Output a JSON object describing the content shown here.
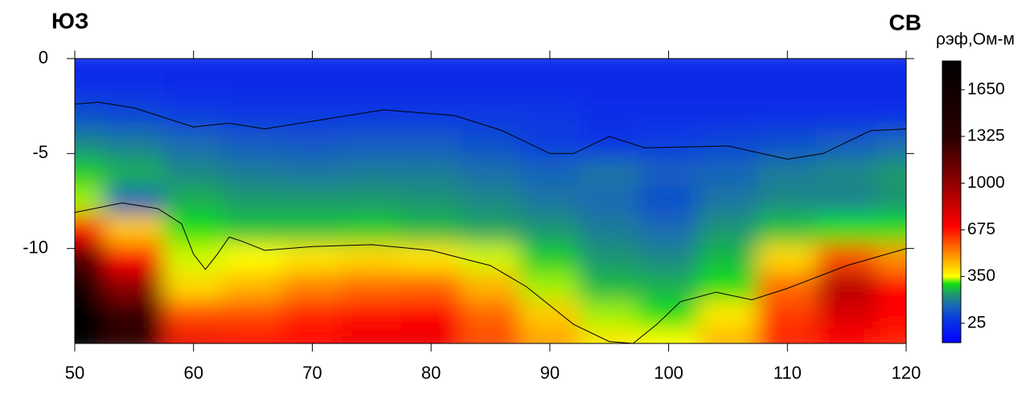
{
  "chart_data": {
    "type": "contour",
    "left_label": "ЮЗ",
    "right_label": "СВ",
    "colorbar_title": "ρэф,Ом-м",
    "xlim": [
      50,
      120
    ],
    "ylim": [
      -15,
      0
    ],
    "xticks": [
      50,
      60,
      70,
      80,
      90,
      100,
      110,
      120
    ],
    "yticks": [
      0,
      -5,
      -10
    ],
    "clim": [
      -110,
      1850
    ],
    "cticks": [
      25,
      350,
      675,
      1000,
      1325,
      1650
    ],
    "colorscale": [
      [
        -110,
        "#0000ff"
      ],
      [
        60,
        "#0a3ce0"
      ],
      [
        150,
        "#1a6ab4"
      ],
      [
        230,
        "#1f9a6a"
      ],
      [
        300,
        "#10e010"
      ],
      [
        350,
        "#ffff00"
      ],
      [
        500,
        "#ff9000"
      ],
      [
        700,
        "#ff0000"
      ],
      [
        1000,
        "#900000"
      ],
      [
        1325,
        "#280000"
      ],
      [
        1850,
        "#000000"
      ]
    ],
    "x": [
      50,
      55,
      60,
      65,
      70,
      75,
      80,
      85,
      90,
      95,
      100,
      105,
      110,
      115,
      120
    ],
    "y": [
      0,
      -1.5,
      -3,
      -4.5,
      -6,
      -7.5,
      -9,
      -10.5,
      -12,
      -13.5,
      -15
    ],
    "z": [
      [
        10,
        10,
        10,
        10,
        10,
        10,
        10,
        10,
        10,
        10,
        10,
        10,
        10,
        10,
        10
      ],
      [
        20,
        20,
        15,
        15,
        15,
        15,
        15,
        15,
        10,
        10,
        10,
        10,
        10,
        10,
        10
      ],
      [
        100,
        80,
        60,
        50,
        50,
        50,
        50,
        50,
        50,
        20,
        20,
        20,
        20,
        20,
        20
      ],
      [
        200,
        180,
        150,
        120,
        110,
        120,
        120,
        100,
        60,
        40,
        60,
        80,
        100,
        120,
        150
      ],
      [
        280,
        250,
        200,
        180,
        170,
        180,
        180,
        160,
        140,
        170,
        130,
        140,
        180,
        200,
        230
      ],
      [
        330,
        150,
        250,
        230,
        230,
        230,
        220,
        200,
        170,
        150,
        100,
        170,
        200,
        190,
        220
      ],
      [
        700,
        420,
        300,
        270,
        270,
        280,
        260,
        240,
        220,
        180,
        150,
        220,
        270,
        300,
        300
      ],
      [
        1200,
        700,
        340,
        350,
        380,
        400,
        380,
        340,
        280,
        220,
        200,
        260,
        400,
        600,
        500
      ],
      [
        1600,
        1000,
        400,
        450,
        520,
        550,
        560,
        450,
        330,
        260,
        250,
        300,
        550,
        900,
        700
      ],
      [
        1800,
        1300,
        600,
        600,
        650,
        680,
        700,
        560,
        420,
        330,
        300,
        380,
        620,
        800,
        700
      ],
      [
        1800,
        1300,
        750,
        700,
        700,
        750,
        750,
        600,
        480,
        380,
        350,
        450,
        650,
        700,
        650
      ]
    ],
    "series": [
      {
        "color": "#000000",
        "x": [
          50,
          52,
          55,
          60,
          63,
          66,
          70,
          76,
          82,
          86,
          90,
          92,
          95,
          98,
          105,
          110,
          113,
          117,
          120
        ],
        "y": [
          -2.4,
          -2.3,
          -2.6,
          -3.6,
          -3.4,
          -3.7,
          -3.3,
          -2.7,
          -3,
          -3.8,
          -5,
          -5,
          -4.1,
          -4.7,
          -4.6,
          -5.3,
          -5,
          -3.8,
          -3.7
        ]
      },
      {
        "color": "#000000",
        "x": [
          50,
          54,
          57,
          59,
          60,
          61,
          62,
          63,
          64,
          66,
          70,
          75,
          80,
          85,
          88,
          92,
          95,
          97,
          99,
          101,
          104,
          107,
          110,
          115,
          120
        ],
        "y": [
          -8.1,
          -7.6,
          -7.9,
          -8.7,
          -10.3,
          -11.1,
          -10.3,
          -9.4,
          -9.6,
          -10.1,
          -9.9,
          -9.8,
          -10.1,
          -10.9,
          -12,
          -14,
          -14.9,
          -15,
          -14,
          -12.8,
          -12.3,
          -12.7,
          -12.1,
          -10.9,
          -10
        ]
      }
    ]
  }
}
